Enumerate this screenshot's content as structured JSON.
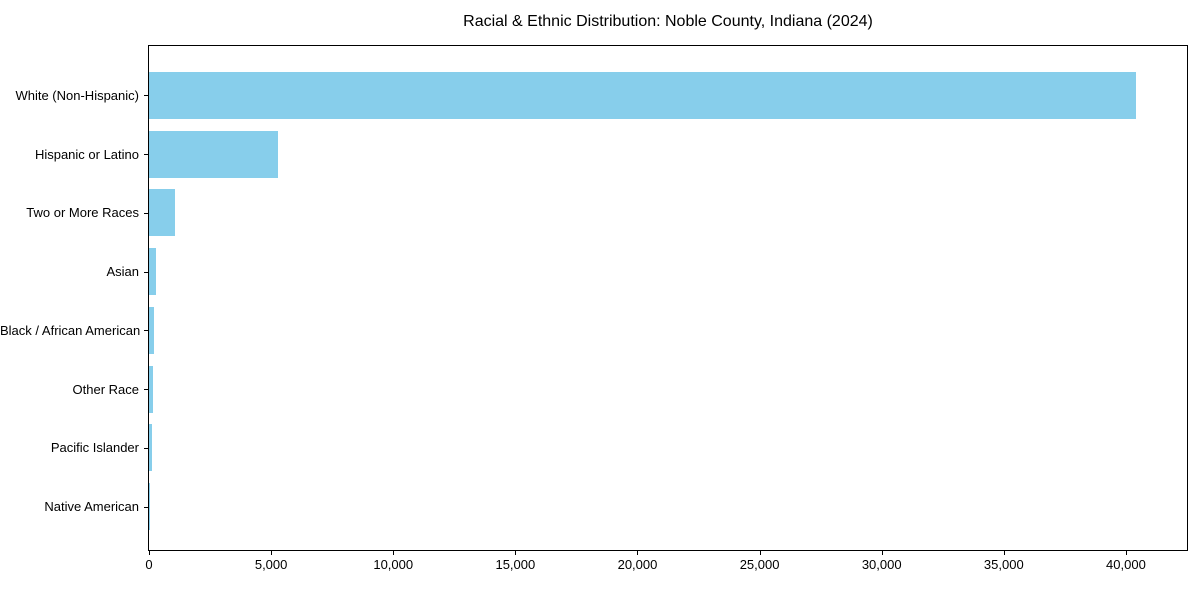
{
  "chart_data": {
    "type": "bar",
    "orientation": "horizontal",
    "title": "Racial & Ethnic Distribution: Noble County, Indiana (2024)",
    "categories": [
      "White (Non-Hispanic)",
      "Hispanic or Latino",
      "Two or More Races",
      "Asian",
      "Black / African American",
      "Other Race",
      "Pacific Islander",
      "Native American"
    ],
    "values": [
      40400,
      5300,
      1065,
      300,
      205,
      145,
      125,
      40
    ],
    "xlabel": "",
    "ylabel": "",
    "xlim": [
      0,
      42500
    ],
    "x_ticks": [
      {
        "value": 0,
        "label": "0"
      },
      {
        "value": 5000,
        "label": "5,000"
      },
      {
        "value": 10000,
        "label": "10,000"
      },
      {
        "value": 15000,
        "label": "15,000"
      },
      {
        "value": 20000,
        "label": "20,000"
      },
      {
        "value": 25000,
        "label": "25,000"
      },
      {
        "value": 30000,
        "label": "30,000"
      },
      {
        "value": 35000,
        "label": "35,000"
      },
      {
        "value": 40000,
        "label": "40,000"
      }
    ],
    "bar_color": "#87CEEB",
    "axis_color": "#000000",
    "background_color": "#FFFFFF",
    "grid": false,
    "legend": "none"
  }
}
